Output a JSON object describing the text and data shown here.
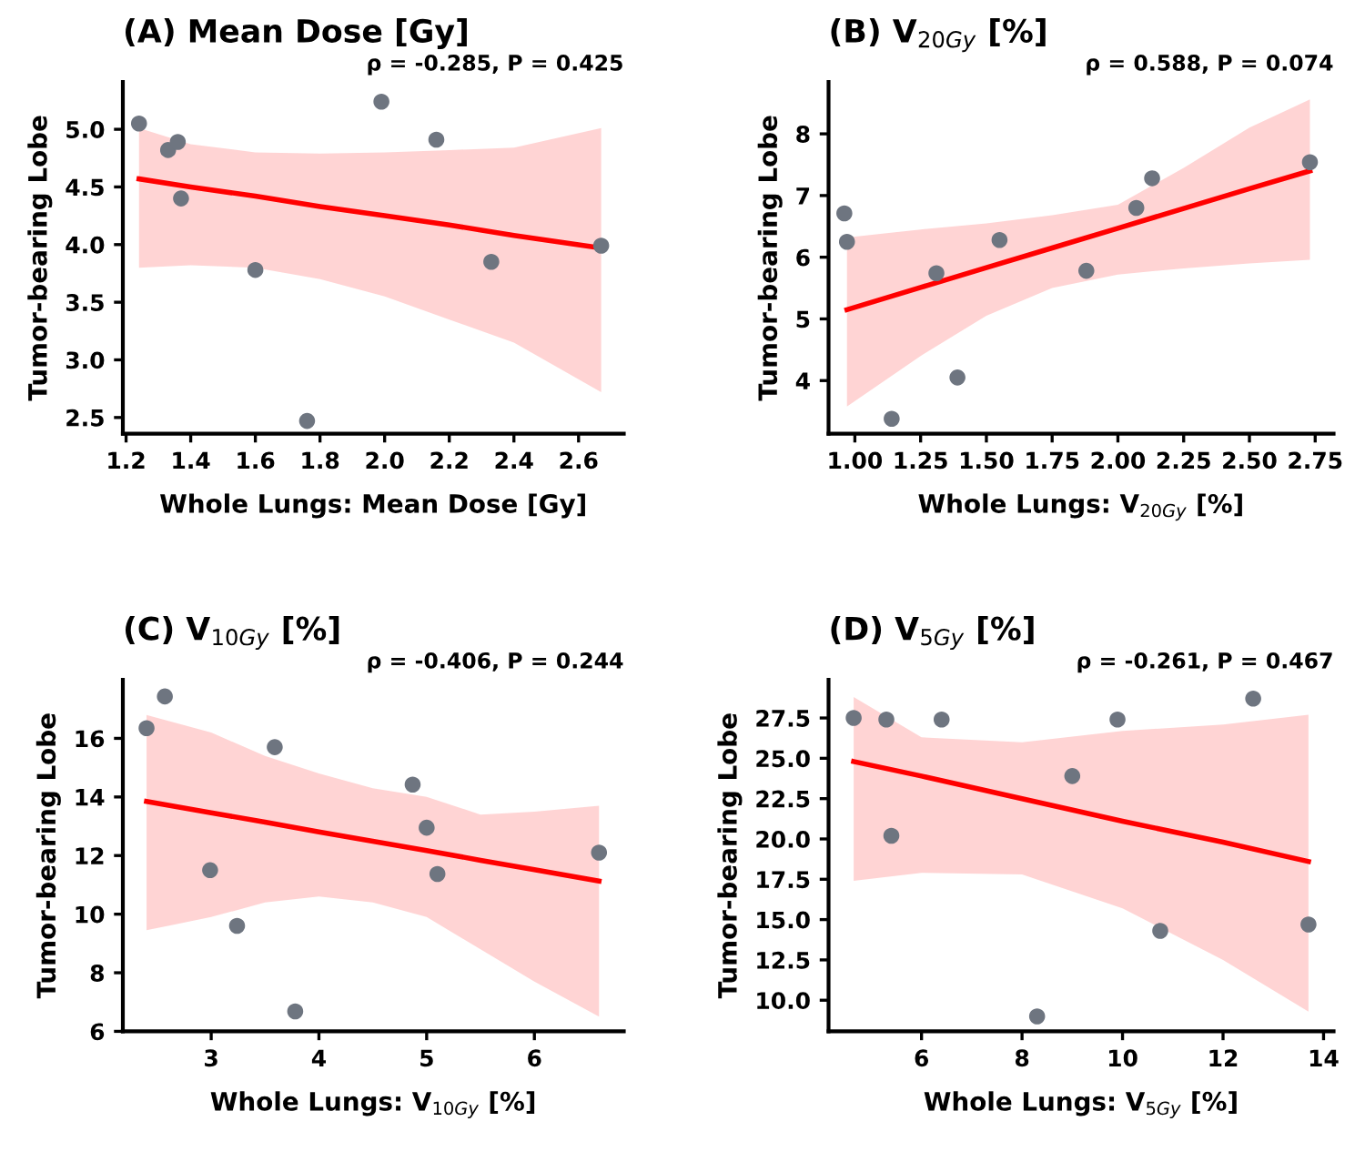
{
  "chart_data": [
    {
      "type": "scatter",
      "title": "(A) Mean Dose [Gy]",
      "xlabel": "Whole Lungs: Mean Dose [Gy]",
      "ylabel": "Tumor-bearing Lobe",
      "annotations": [
        "ρ = -0.285, P = 0.425"
      ],
      "grid": false,
      "xlim": [
        1.19,
        2.74
      ],
      "ylim": [
        2.36,
        5.41
      ],
      "xticks": [
        1.2,
        1.4,
        1.6,
        1.8,
        {
          "value": 2,
          "label": "2.0"
        },
        2.2,
        2.4,
        2.6
      ],
      "yticks": [
        2.5,
        {
          "value": 3,
          "label": "3.0"
        },
        3.5,
        {
          "value": 4,
          "label": "4.0"
        },
        4.5,
        {
          "value": 5,
          "label": "5.0"
        }
      ],
      "series": [
        {
          "marker": "circle",
          "color": "#6e7580",
          "x": [
            1.24,
            1.33,
            1.36,
            1.37,
            1.6,
            1.76,
            1.99,
            2.16,
            2.33,
            2.67
          ],
          "values": [
            5.05,
            4.82,
            4.89,
            4.4,
            3.78,
            2.47,
            5.24,
            4.91,
            3.85,
            3.99
          ]
        },
        {
          "type": "line",
          "color": "#ff0000",
          "x": [
            1.24,
            1.4,
            1.6,
            1.8,
            2.0,
            2.2,
            2.4,
            2.67
          ],
          "values": [
            4.57,
            4.5,
            4.42,
            4.33,
            4.25,
            4.17,
            4.08,
            3.97
          ],
          "lower": [
            3.8,
            3.82,
            3.8,
            3.7,
            3.55,
            3.35,
            3.15,
            2.72
          ],
          "upper": [
            5.01,
            4.87,
            4.8,
            4.79,
            4.8,
            4.82,
            4.84,
            5.01
          ]
        }
      ]
    },
    {
      "type": "scatter",
      "title": "(B) V$_{20Gy}$ [%]",
      "xlabel": "Whole Lungs: V$_{20Gy}$ [%]",
      "ylabel": "Tumor-bearing Lobe",
      "annotations": [
        "ρ = 0.588, P = 0.074"
      ],
      "grid": false,
      "xlim": [
        0.9,
        2.82
      ],
      "ylim": [
        3.14,
        8.84
      ],
      "xticks": [
        {
          "value": 1,
          "label": "1.00"
        },
        1.25,
        {
          "value": 1.5,
          "label": "1.50"
        },
        1.75,
        {
          "value": 2,
          "label": "2.00"
        },
        2.25,
        {
          "value": 2.5,
          "label": "2.50"
        },
        2.75
      ],
      "yticks": [
        4,
        5,
        6,
        7,
        8
      ],
      "series": [
        {
          "marker": "circle",
          "color": "#6e7580",
          "x": [
            0.96,
            0.97,
            1.14,
            1.31,
            1.39,
            1.55,
            1.88,
            2.07,
            2.13,
            2.73
          ],
          "values": [
            6.71,
            6.25,
            3.38,
            5.74,
            4.05,
            6.28,
            5.78,
            6.8,
            7.28,
            7.54
          ]
        },
        {
          "type": "line",
          "color": "#ff0000",
          "x": [
            0.97,
            1.25,
            1.5,
            1.75,
            2.0,
            2.25,
            2.5,
            2.73
          ],
          "values": [
            5.15,
            5.51,
            5.83,
            6.15,
            6.47,
            6.79,
            7.11,
            7.4
          ],
          "lower": [
            3.58,
            4.4,
            5.05,
            5.5,
            5.72,
            5.82,
            5.9,
            5.96
          ],
          "upper": [
            6.32,
            6.45,
            6.55,
            6.68,
            6.85,
            7.45,
            8.1,
            8.56
          ]
        }
      ]
    },
    {
      "type": "scatter",
      "title": "(C) V$_{10Gy}$ [%]",
      "xlabel": "Whole Lungs: V$_{10Gy}$ [%]",
      "ylabel": "Tumor-bearing Lobe",
      "annotations": [
        "ρ = -0.406, P = 0.244"
      ],
      "grid": false,
      "xlim": [
        2.18,
        6.83
      ],
      "ylim": [
        6,
        18
      ],
      "xticks": [
        3,
        4,
        5,
        6
      ],
      "yticks": [
        6,
        8,
        10,
        12,
        14,
        16
      ],
      "series": [
        {
          "marker": "circle",
          "color": "#6e7580",
          "x": [
            2.4,
            2.57,
            2.99,
            3.24,
            3.59,
            3.78,
            4.87,
            5.0,
            5.1,
            6.6
          ],
          "values": [
            16.35,
            17.43,
            11.5,
            9.6,
            15.7,
            6.68,
            14.42,
            12.95,
            11.37,
            12.1
          ]
        },
        {
          "type": "line",
          "color": "#ff0000",
          "x": [
            2.4,
            3,
            3.5,
            4,
            4.5,
            5,
            5.5,
            6,
            6.6
          ],
          "values": [
            13.85,
            13.46,
            13.14,
            12.81,
            12.49,
            12.17,
            11.84,
            11.52,
            11.13
          ],
          "lower": [
            9.45,
            9.9,
            10.4,
            10.6,
            10.4,
            9.9,
            8.8,
            7.7,
            6.5
          ],
          "upper": [
            16.8,
            16.2,
            15.4,
            14.8,
            14.3,
            14.0,
            13.4,
            13.5,
            13.7
          ]
        }
      ]
    },
    {
      "type": "scatter",
      "title": "(D) V$_{5Gy}$ [%]",
      "xlabel": "Whole Lungs: V$_{5Gy}$ [%]",
      "ylabel": "Tumor-bearing Lobe",
      "annotations": [
        "ρ = -0.261, P = 0.467"
      ],
      "grid": false,
      "xlim": [
        4.15,
        14.2
      ],
      "ylim": [
        8.07,
        29.87
      ],
      "xticks": [
        6,
        8,
        10,
        12,
        14
      ],
      "yticks": [
        {
          "value": 10,
          "label": "10.0"
        },
        12.5,
        {
          "value": 15,
          "label": "15.0"
        },
        17.5,
        {
          "value": 20,
          "label": "20.0"
        },
        22.5,
        {
          "value": 25,
          "label": "25.0"
        },
        27.5
      ],
      "series": [
        {
          "marker": "circle",
          "color": "#6e7580",
          "x": [
            4.65,
            5.3,
            5.4,
            6.4,
            8.3,
            9.0,
            9.9,
            10.75,
            12.6,
            13.7
          ],
          "values": [
            27.5,
            27.4,
            20.2,
            27.4,
            9.0,
            23.9,
            27.4,
            14.3,
            28.7,
            14.7
          ]
        },
        {
          "type": "line",
          "color": "#ff0000",
          "x": [
            4.65,
            6,
            8,
            10,
            12,
            13.7
          ],
          "values": [
            24.8,
            23.9,
            22.5,
            21.1,
            19.8,
            18.6
          ],
          "lower": [
            17.4,
            17.9,
            17.8,
            15.7,
            12.5,
            9.3
          ],
          "upper": [
            28.8,
            26.3,
            26.0,
            26.7,
            27.1,
            27.7
          ]
        }
      ]
    }
  ]
}
